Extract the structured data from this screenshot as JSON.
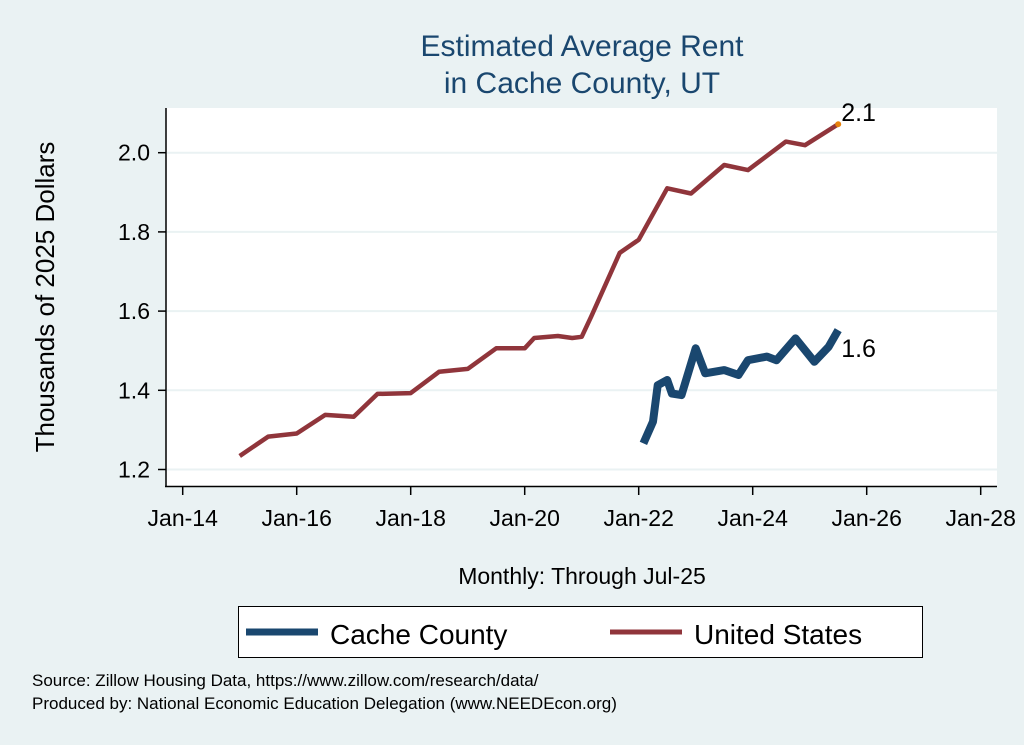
{
  "chart_data": {
    "type": "line",
    "title": [
      "Estimated Average Rent",
      "in Cache County, UT"
    ],
    "xlabel": "Monthly: Through Jul-25",
    "ylabel": "Thousands of 2025 Dollars",
    "ylim": [
      1.16,
      2.12
    ],
    "xlim": [
      "2013-09",
      "2028-04"
    ],
    "yticks": [
      1.2,
      1.4,
      1.6,
      1.8,
      2.0
    ],
    "ytick_labels": [
      "1.2",
      "1.4",
      "1.6",
      "1.8",
      "2.0"
    ],
    "xticks": [
      "2014-01",
      "2016-01",
      "2018-01",
      "2020-01",
      "2022-01",
      "2024-01",
      "2026-01",
      "2028-01"
    ],
    "xtick_labels": [
      "Jan-14",
      "Jan-16",
      "Jan-18",
      "Jan-20",
      "Jan-22",
      "Jan-24",
      "Jan-26",
      "Jan-28"
    ],
    "grid": true,
    "legend_position": "bottom",
    "series": [
      {
        "name": "Cache County",
        "color": "#1a476f",
        "end_label": "1.6",
        "x": [
          "2022-02",
          "2022-04",
          "2022-05",
          "2022-07",
          "2022-08",
          "2022-10",
          "2023-01",
          "2023-03",
          "2023-07",
          "2023-10",
          "2023-12",
          "2024-04",
          "2024-06",
          "2024-10",
          "2025-02",
          "2025-05",
          "2025-07"
        ],
        "y": [
          1.266,
          1.321,
          1.413,
          1.426,
          1.392,
          1.388,
          1.506,
          1.443,
          1.451,
          1.439,
          1.476,
          1.485,
          1.476,
          1.531,
          1.472,
          1.51,
          1.552
        ]
      },
      {
        "name": "United States",
        "color": "#90353b",
        "end_label": "2.1",
        "end_marker_color": "#e8820c",
        "x": [
          "2015-01",
          "2015-07",
          "2016-01",
          "2016-07",
          "2017-01",
          "2017-06",
          "2018-01",
          "2018-07",
          "2019-01",
          "2019-07",
          "2020-01",
          "2020-03",
          "2020-08",
          "2020-11",
          "2021-01",
          "2021-03",
          "2021-09",
          "2022-01",
          "2022-07",
          "2022-12",
          "2023-07",
          "2023-12",
          "2024-08",
          "2024-12",
          "2025-07"
        ],
        "y": [
          1.234,
          1.283,
          1.291,
          1.338,
          1.333,
          1.391,
          1.393,
          1.447,
          1.454,
          1.506,
          1.506,
          1.532,
          1.537,
          1.532,
          1.535,
          1.586,
          1.747,
          1.78,
          1.91,
          1.897,
          1.969,
          1.956,
          2.028,
          2.019,
          2.072
        ]
      }
    ]
  },
  "footer": {
    "source": "Source: Zillow Housing Data, https://www.zillow.com/research/data/",
    "produced": "Produced by: National Economic Education Delegation (www.NEEDEcon.org)"
  }
}
